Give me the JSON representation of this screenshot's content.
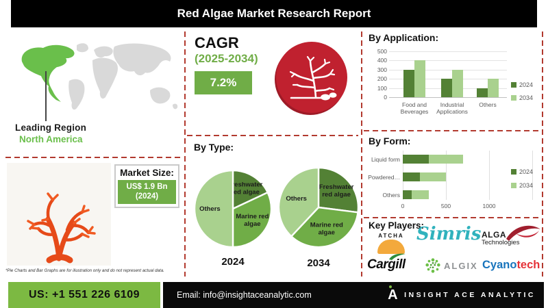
{
  "title": "Red Algae Market Research Report",
  "palette": {
    "accent_green": "#70ad47",
    "dark_green": "#538135",
    "light_green": "#a9d18e",
    "bright_green": "#7cb942",
    "map_region_green": "#6abf4b",
    "map_gray": "#d9d9d9",
    "icon_red": "#be202e",
    "dashed_line_red": "#b2392e",
    "chart_text_gray": "#595959"
  },
  "map": {
    "leading_label": "Leading Region",
    "leading_value": "North America"
  },
  "market_size": {
    "label": "Market Size:",
    "value_line1": "US$ 1.9 Bn",
    "value_line2": "(2024)"
  },
  "cagr": {
    "label": "CAGR",
    "period": "(2025-2034)",
    "value": "7.2%"
  },
  "footnote": "*Pie Charts and Bar Graphs are for illustration only and do not represent actual data.",
  "icons": {
    "red_algae_circle": "red-algae-coral-icon",
    "coral_photo": "red-coral-illustration",
    "world_map": "world-map-north-america-highlighted"
  },
  "chart_data": [
    {
      "id": "by_application",
      "type": "bar",
      "title": "By Application:",
      "categories": [
        "Food and Beverages",
        "Industrial Applications",
        "Others"
      ],
      "series": [
        {
          "name": "2024",
          "color": "#538135",
          "values": [
            300,
            200,
            100
          ]
        },
        {
          "name": "2034",
          "color": "#a9d18e",
          "values": [
            400,
            300,
            200
          ]
        }
      ],
      "ylabel": "",
      "ylim": [
        0,
        500
      ],
      "yticks": [
        0,
        100,
        200,
        300,
        400,
        500
      ],
      "grid": true,
      "legend_position": "right"
    },
    {
      "id": "by_type",
      "type": "pie",
      "title": "By Type:",
      "pies": [
        {
          "label": "2024",
          "slices": [
            {
              "name": "Freshwater red algae",
              "lines": [
                "Freshwater",
                "red algae"
              ],
              "percent": 18,
              "color": "#538135"
            },
            {
              "name": "Marine red algae",
              "lines": [
                "Marine red",
                "algae"
              ],
              "percent": 32,
              "color": "#70ad47"
            },
            {
              "name": "Others",
              "lines": [
                "Others"
              ],
              "percent": 50,
              "color": "#a9d18e"
            }
          ]
        },
        {
          "label": "2034",
          "slices": [
            {
              "name": "Freshwater red algae",
              "lines": [
                "Freshwater",
                "red algae"
              ],
              "percent": 27,
              "color": "#538135"
            },
            {
              "name": "Marine red algae",
              "lines": [
                "Marine red",
                "algae"
              ],
              "percent": 35,
              "color": "#70ad47"
            },
            {
              "name": "Others",
              "lines": [
                "Others"
              ],
              "percent": 38,
              "color": "#a9d18e"
            }
          ]
        }
      ]
    },
    {
      "id": "by_form",
      "type": "stacked_bar_horizontal",
      "title": "By Form:",
      "categories": [
        "Liquid form",
        "Powdered…",
        "Others"
      ],
      "series": [
        {
          "name": "2024",
          "color": "#538135",
          "values": [
            300,
            200,
            100
          ]
        },
        {
          "name": "2034",
          "color": "#a9d18e",
          "values": [
            400,
            300,
            200
          ]
        }
      ],
      "xlim": [
        0,
        1500
      ],
      "xticks": [
        0,
        500,
        1000
      ],
      "grid": true,
      "legend_position": "right"
    }
  ],
  "key_players": {
    "label": "Key Players:",
    "logos": [
      {
        "name": "ATCHA"
      },
      {
        "name": "Simris"
      },
      {
        "name": "ALGA Technologies",
        "line1": "ALGA",
        "line2": "Technologies"
      },
      {
        "name": "Cargill"
      },
      {
        "name": "ALGIX"
      },
      {
        "name": "Cyanotech",
        "part1": "Cyano",
        "part2": "tech"
      }
    ]
  },
  "contact": {
    "phone": "US: +1 551 226 6109",
    "email": "Email: info@insightaceanalytic.com",
    "brand": "INSIGHT ACE ANALYTIC",
    "brand_icon": "stylized-A-with-green-dot"
  }
}
